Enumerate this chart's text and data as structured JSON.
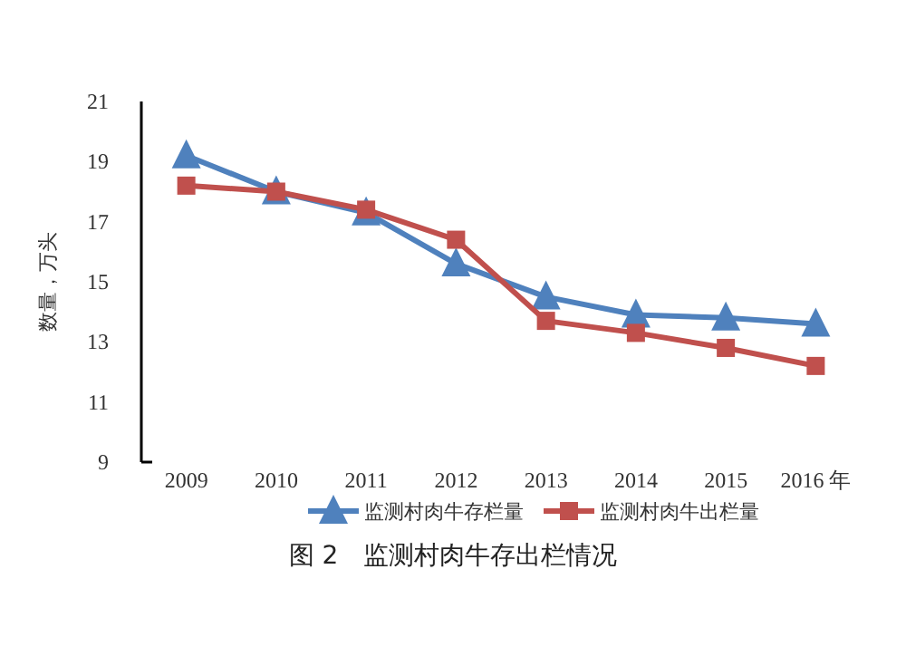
{
  "chart_data": {
    "type": "line",
    "title": "图 2　监测村肉牛存出栏情况",
    "ylabel": "数量，万头",
    "categories": [
      "2009",
      "2010",
      "2011",
      "2012",
      "2013",
      "2014",
      "2015",
      "2016 年"
    ],
    "series": [
      {
        "name": "监测村肉牛存栏量",
        "color": "#4f81bd",
        "marker": "triangle",
        "values": [
          19.2,
          18.0,
          17.3,
          15.6,
          14.5,
          13.9,
          13.8,
          13.6
        ]
      },
      {
        "name": "监测村肉牛出栏量",
        "color": "#c0504d",
        "marker": "square",
        "values": [
          18.2,
          18.0,
          17.4,
          16.4,
          13.7,
          13.3,
          12.8,
          12.2
        ]
      }
    ],
    "ylim": [
      9,
      21
    ],
    "yticks": [
      9,
      11,
      13,
      15,
      17,
      19,
      21
    ],
    "grid": false,
    "legend": "bottom",
    "line_style": "solid"
  }
}
